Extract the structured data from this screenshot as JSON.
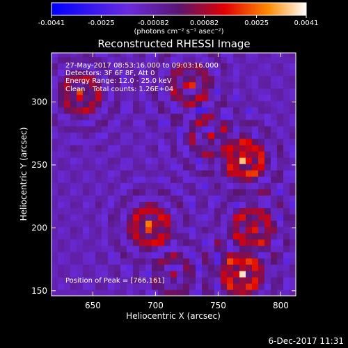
{
  "colorbar": {
    "ticks": [
      "-0.0041",
      "-0.0025",
      "-0.00082",
      "0.00082",
      "0.0025",
      "0.0041"
    ],
    "range": [
      -0.0041,
      0.0041
    ],
    "unit_label": "(photons cm⁻² s⁻¹ asec⁻²)"
  },
  "chart_data": {
    "type": "heatmap",
    "title": "Reconstructed RHESSI Image",
    "xlabel": "Heliocentric X (arcsec)",
    "ylabel": "Heliocentric Y (arcsec)",
    "xlim": [
      617,
      812
    ],
    "ylim": [
      146,
      339
    ],
    "xticks": [
      650,
      700,
      750,
      800
    ],
    "yticks": [
      150,
      200,
      250,
      300
    ],
    "annotations": {
      "time_range": "27-May-2017 08:53:16.000 to 09:03:16.000",
      "detectors": "Detectors: 3F 6F 8F, Att 0",
      "energy": "Energy Range: 12.0 - 25.0 keV",
      "method": "Clean",
      "counts": "Total counts: 1.26E+04",
      "peak": "Position of Peak = [766,161]"
    },
    "sources": [
      {
        "x": 769,
        "y": 252,
        "value": 0.0041
      },
      {
        "x": 766,
        "y": 161,
        "value": 0.0041
      },
      {
        "x": 693,
        "y": 199,
        "value": 0.0035
      },
      {
        "x": 638,
        "y": 304,
        "value": 0.0028
      },
      {
        "x": 725,
        "y": 312,
        "value": 0.0022
      },
      {
        "x": 775,
        "y": 198,
        "value": 0.003
      },
      {
        "x": 712,
        "y": 160,
        "value": 0.0012
      },
      {
        "x": 740,
        "y": 270,
        "value": 0.0014
      }
    ],
    "footer_date": "6-Dec-2017 11:31"
  }
}
